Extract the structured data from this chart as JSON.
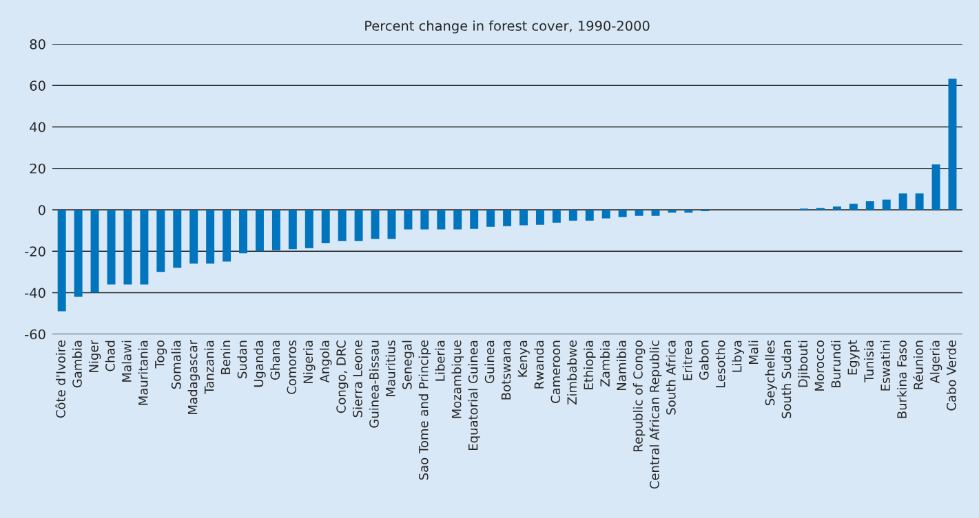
{
  "chart_data": {
    "type": "bar",
    "title": "Percent change in forest cover, 1990-2000",
    "categories": [
      "Côte d'Ivoire",
      "Gambia",
      "Niger",
      "Chad",
      "Malawi",
      "Mauritania",
      "Togo",
      "Somalia",
      "Madagascar",
      "Tanzania",
      "Benin",
      "Sudan",
      "Uganda",
      "Ghana",
      "Comoros",
      "Nigeria",
      "Angola",
      "Congo, DRC",
      "Sierra Leone",
      "Guinea-Bissau",
      "Mauritius",
      "Senegal",
      "Sao Tome and Principe",
      "Liberia",
      "Mozambique",
      "Equatorial Guinea",
      "Guinea",
      "Botswana",
      "Kenya",
      "Rwanda",
      "Cameroon",
      "Zimbabwe",
      "Ethiopia",
      "Zambia",
      "Namibia",
      "Republic of Congo",
      "Central African Republic",
      "South Africa",
      "Eritrea",
      "Gabon",
      "Lesotho",
      "Libya",
      "Mali",
      "Seychelles",
      "South Sudan",
      "Djibouti",
      "Morocco",
      "Burundi",
      "Egypt",
      "Tunisia",
      "Eswatini",
      "Burkina Faso",
      "Réunion",
      "Algeria",
      "Cabo Verde"
    ],
    "values": [
      -49,
      -42,
      -40,
      -36,
      -36,
      -36,
      -30,
      -28,
      -26,
      -26,
      -25,
      -21,
      -20,
      -19.5,
      -19,
      -18.5,
      -16,
      -15,
      -15,
      -14,
      -14,
      -9.5,
      -9.5,
      -9.5,
      -9.5,
      -9.2,
      -8.2,
      -7.9,
      -7.5,
      -7.2,
      -6.2,
      -5.2,
      -5.2,
      -4.2,
      -3.5,
      -2.9,
      -2.9,
      -1.3,
      -1.3,
      -0.7,
      0,
      0,
      0,
      0,
      0,
      0.6,
      0.9,
      1.6,
      2.9,
      4.2,
      4.9,
      7.9,
      7.9,
      21.9,
      63.2
    ],
    "color": "#0075be",
    "ylim": [
      -60,
      80
    ],
    "yticks": [
      -60,
      -40,
      -20,
      0,
      20,
      40,
      60,
      80
    ],
    "grid": "y"
  }
}
